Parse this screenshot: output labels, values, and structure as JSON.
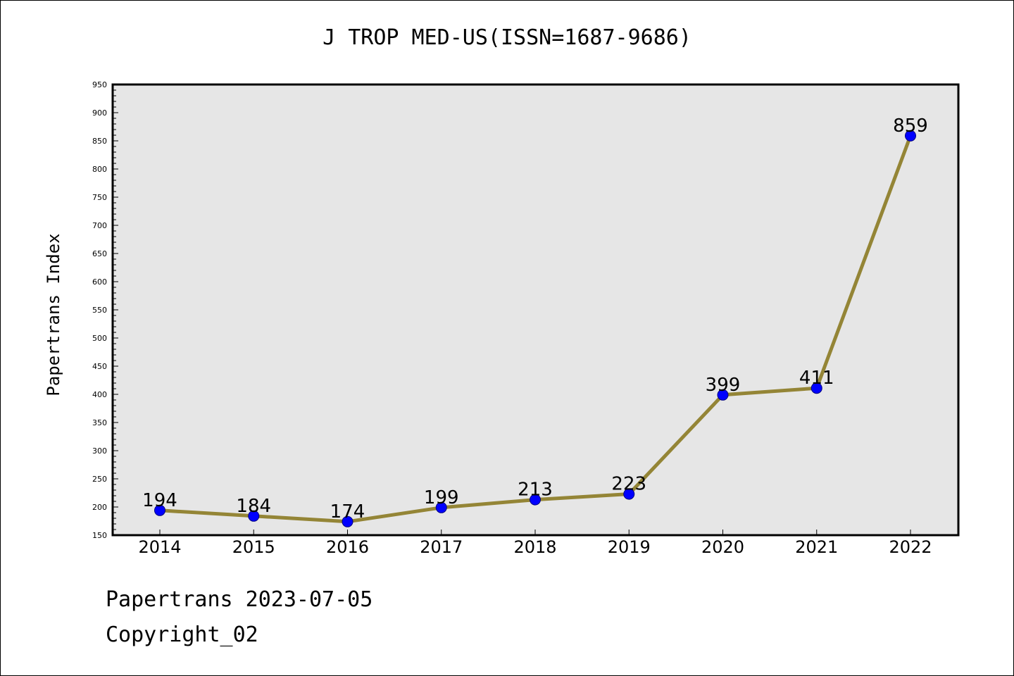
{
  "footer": {
    "line1": "Papertrans 2023-07-05",
    "line2": "Copyright_02"
  },
  "colors": {
    "plot_background": "#e6e6e6",
    "line": "#948536",
    "marker_fill": "#0000ff",
    "marker_edge": "#000080",
    "frame": "#000000"
  },
  "chart_data": {
    "type": "line",
    "title": "J TROP MED-US(ISSN=1687-9686)",
    "xlabel": "",
    "ylabel": "Papertrans Index",
    "categories": [
      "2014",
      "2015",
      "2016",
      "2017",
      "2018",
      "2019",
      "2020",
      "2021",
      "2022"
    ],
    "series": [
      {
        "values": [
          194,
          184,
          174,
          199,
          213,
          223,
          399,
          411,
          859
        ]
      }
    ],
    "ylim": [
      150,
      950
    ],
    "yticks": [
      150,
      200,
      250,
      300,
      350,
      400,
      450,
      500,
      550,
      600,
      650,
      700,
      750,
      800,
      850,
      900,
      950
    ],
    "grid": false,
    "data_labels": true
  }
}
